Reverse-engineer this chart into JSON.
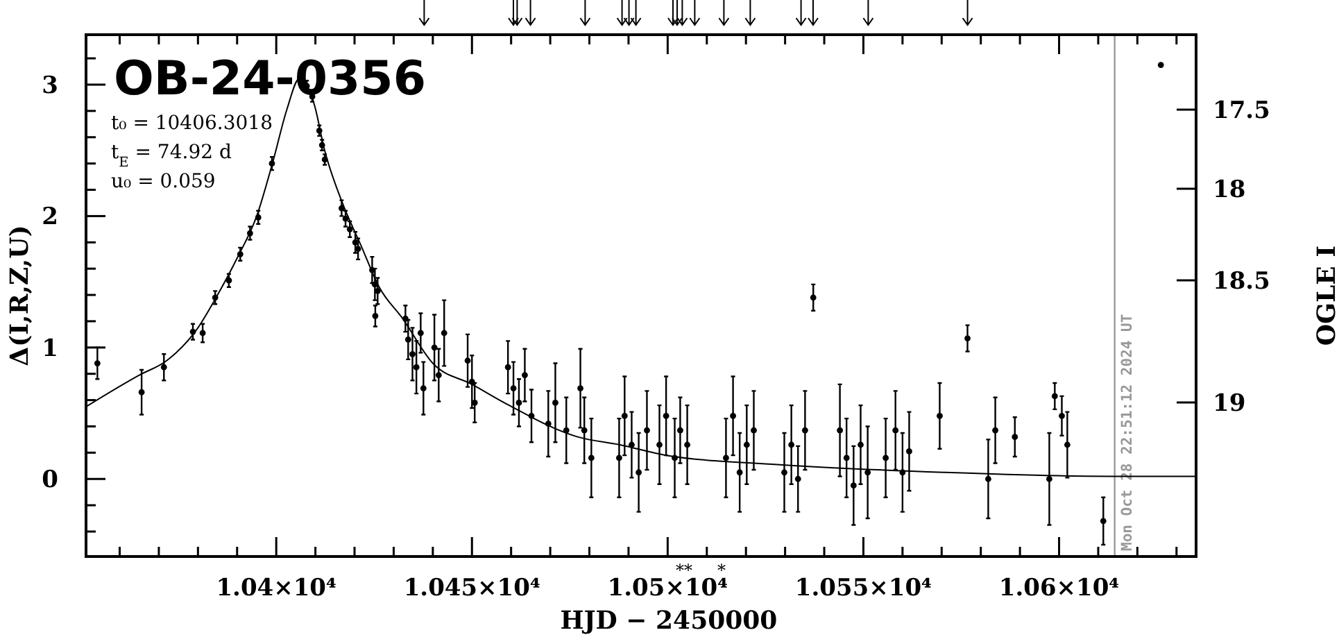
{
  "chart_data": {
    "type": "scatter",
    "title": "OB-24-0356",
    "xlabel": "HJD − 2450000",
    "ylabel": "Δ(I,R,Z,U)",
    "y2label": "OGLE I",
    "annotations": [
      "t₀ = 10406.3018",
      "t$_{E}$ = 74.92 d",
      "u₀ = 0.059",
      "**",
      "*",
      "Mon Oct 28 22:51:12 2024 UT",
      "17.5",
      "18",
      "18.5",
      "19"
    ],
    "xlim": [
      10351.4,
      10635
    ],
    "xticks": [
      {
        "value": 10360,
        "label": null
      },
      {
        "value": 10370,
        "label": null
      },
      {
        "value": 10380,
        "label": null
      },
      {
        "value": 10390,
        "label": null
      },
      {
        "value": 10400,
        "label": "1.04×10⁴"
      },
      {
        "value": 10410,
        "label": null
      },
      {
        "value": 10420,
        "label": null
      },
      {
        "value": 10430,
        "label": null
      },
      {
        "value": 10440,
        "label": null
      },
      {
        "value": 10450,
        "label": "1.045×10⁴"
      },
      {
        "value": 10460,
        "label": null
      },
      {
        "value": 10470,
        "label": null
      },
      {
        "value": 10480,
        "label": null
      },
      {
        "value": 10490,
        "label": null
      },
      {
        "value": 10500,
        "label": "1.05×10⁴"
      },
      {
        "value": 10510,
        "label": null
      },
      {
        "value": 10520,
        "label": null
      },
      {
        "value": 10530,
        "label": null
      },
      {
        "value": 10540,
        "label": null
      },
      {
        "value": 10550,
        "label": "1.055×10⁴"
      },
      {
        "value": 10560,
        "label": null
      },
      {
        "value": 10570,
        "label": null
      },
      {
        "value": 10580,
        "label": null
      },
      {
        "value": 10590,
        "label": null
      },
      {
        "value": 10600,
        "label": "1.06×10⁴"
      },
      {
        "value": 10610,
        "label": null
      },
      {
        "value": 10620,
        "label": null
      },
      {
        "value": 10630,
        "label": null
      }
    ],
    "ylim": [
      -0.59,
      3.38
    ],
    "yticks": [
      {
        "value": -0.4,
        "label": null
      },
      {
        "value": -0.2,
        "label": null
      },
      0,
      {
        "value": 0.2,
        "label": null
      },
      {
        "value": 0.4,
        "label": null
      },
      {
        "value": 0.6,
        "label": null
      },
      {
        "value": 0.8,
        "label": null
      },
      1,
      {
        "value": 1.2,
        "label": null
      },
      {
        "value": 1.4,
        "label": null
      },
      {
        "value": 1.6,
        "label": null
      },
      {
        "value": 1.8,
        "label": null
      },
      2,
      {
        "value": 2.2,
        "label": null
      },
      {
        "value": 2.4,
        "label": null
      },
      {
        "value": 2.6,
        "label": null
      },
      {
        "value": 2.8,
        "label": null
      },
      3,
      {
        "value": 3.2,
        "label": null
      }
    ],
    "marker": "circle",
    "ref_lines": [
      {
        "axis": "x",
        "value": 10614.2,
        "color": "#999999"
      }
    ],
    "series": [
      {
        "type": "line",
        "color": "#000000",
        "marker": "none",
        "x": [
          10351.4,
          10365,
          10372,
          10380,
          10385,
          10390,
          10395,
          10399.2,
          10402.7,
          10406,
          10409.8,
          10412.2,
          10416.9,
          10421.6,
          10426.3,
          10432.3,
          10440,
          10450,
          10459.5,
          10477,
          10487.8,
          10499.6,
          10528,
          10570.6,
          10613,
          10635
        ],
        "values": [
          0.55,
          0.79,
          0.9,
          1.15,
          1.4,
          1.68,
          2.0,
          2.42,
          2.81,
          3.05,
          2.84,
          2.52,
          2.1,
          1.78,
          1.46,
          1.22,
          0.88,
          0.72,
          0.56,
          0.32,
          0.26,
          0.18,
          0.11,
          0.05,
          0.02,
          0.02
        ]
      },
      {
        "color": "#000000",
        "x": [
          10626
        ],
        "values": [
          3.15
        ]
      },
      {
        "color": "#000000",
        "x": [
          10354.3,
          10365.6,
          10371.3,
          10378.7,
          10381.2,
          10384.4,
          10387.9,
          10390.8,
          10393.3,
          10395.4,
          10398.9,
          10407.8,
          10409.2,
          10411,
          10411.7,
          10412.4,
          10416.7,
          10417.7,
          10418.8,
          10420.2,
          10420.9,
          10424.5,
          10425.2,
          10425.9,
          10425.3,
          10433,
          10433.7,
          10434.8,
          10435.8,
          10436.9,
          10437.6,
          10440.4,
          10441.5,
          10442.9,
          10448.9,
          10450,
          10450.7,
          10459.2,
          10460.6,
          10462,
          10463.5,
          10465.2,
          10469.5,
          10471.3,
          10474.1,
          10477.7,
          10478.7,
          10480.5,
          10487.6,
          10489,
          10490.8,
          10492.6,
          10494.7,
          10497.9,
          10499.6,
          10501.8,
          10503.2,
          10505,
          10514.9,
          10516.7,
          10518.4,
          10520.2,
          10522,
          10529.8,
          10531.6,
          10533.3,
          10535.1,
          10537.2,
          10544,
          10545.7,
          10547.5,
          10549.3,
          10551.1,
          10555.7,
          10558.2,
          10560,
          10561.7,
          10569.5,
          10576.6,
          10581.9,
          10583.7,
          10588.7,
          10597.5,
          10598.9,
          10600.7,
          10602.1,
          10611.3
        ],
        "values": [
          0.88,
          0.66,
          0.85,
          1.12,
          1.11,
          1.38,
          1.51,
          1.71,
          1.87,
          1.99,
          2.4,
          2.99,
          2.91,
          2.65,
          2.54,
          2.43,
          2.06,
          1.98,
          1.9,
          1.8,
          1.75,
          1.59,
          1.48,
          1.43,
          1.24,
          1.22,
          1.06,
          0.95,
          0.85,
          1.11,
          0.69,
          1.0,
          0.79,
          1.11,
          0.9,
          0.74,
          0.58,
          0.85,
          0.69,
          0.58,
          0.79,
          0.48,
          0.42,
          0.58,
          0.37,
          0.69,
          0.37,
          0.16,
          0.16,
          0.48,
          0.26,
          0.05,
          0.37,
          0.26,
          0.48,
          0.16,
          0.37,
          0.26,
          0.16,
          0.48,
          0.05,
          0.26,
          0.37,
          0.05,
          0.26,
          0.0,
          0.37,
          1.38,
          0.37,
          0.16,
          -0.05,
          0.26,
          0.05,
          0.16,
          0.37,
          0.05,
          0.21,
          0.48,
          1.07,
          0.0,
          0.37,
          0.32,
          0.0,
          0.63,
          0.48,
          0.26,
          -0.32
        ],
        "errors": [
          0.12,
          0.17,
          0.1,
          0.06,
          0.07,
          0.05,
          0.05,
          0.05,
          0.05,
          0.05,
          0.05,
          0.04,
          0.04,
          0.04,
          0.04,
          0.04,
          0.06,
          0.06,
          0.06,
          0.08,
          0.08,
          0.1,
          0.12,
          0.1,
          0.08,
          0.1,
          0.15,
          0.2,
          0.2,
          0.15,
          0.2,
          0.25,
          0.2,
          0.25,
          0.2,
          0.2,
          0.15,
          0.2,
          0.2,
          0.18,
          0.2,
          0.2,
          0.25,
          0.3,
          0.25,
          0.3,
          0.25,
          0.3,
          0.3,
          0.3,
          0.25,
          0.3,
          0.3,
          0.3,
          0.3,
          0.3,
          0.25,
          0.3,
          0.3,
          0.3,
          0.3,
          0.3,
          0.3,
          0.3,
          0.3,
          0.25,
          0.3,
          0.1,
          0.35,
          0.3,
          0.3,
          0.3,
          0.35,
          0.3,
          0.3,
          0.3,
          0.3,
          0.25,
          0.1,
          0.3,
          0.25,
          0.15,
          0.35,
          0.1,
          0.15,
          0.25,
          0.18
        ]
      }
    ]
  }
}
